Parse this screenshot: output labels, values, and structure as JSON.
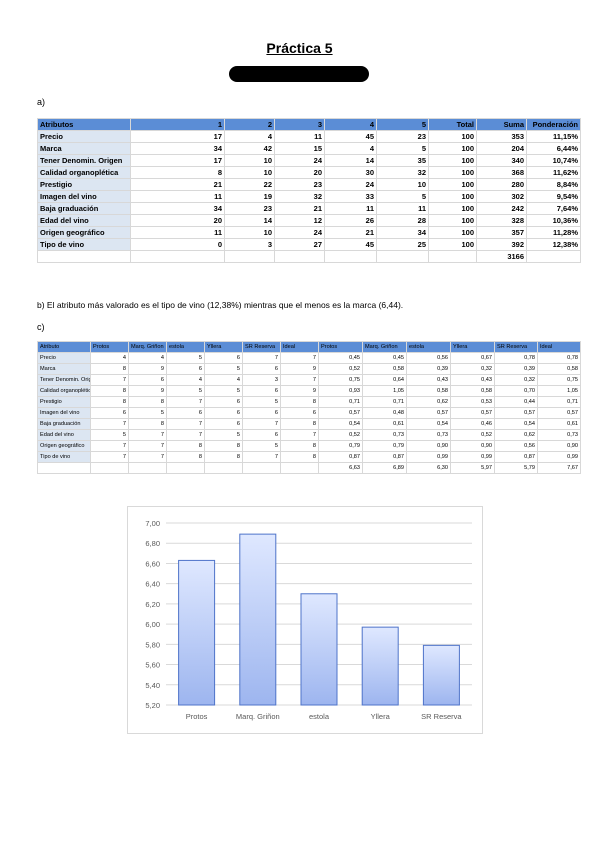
{
  "title": "Práctica 5",
  "section_a": "a)",
  "table_a": {
    "headers": [
      "Atributos",
      "1",
      "2",
      "3",
      "4",
      "5",
      "Total",
      "Suma",
      "Ponderación"
    ],
    "rows": [
      {
        "label": "Precio",
        "values": [
          "17",
          "4",
          "11",
          "45",
          "23",
          "100",
          "353",
          "11,15%"
        ]
      },
      {
        "label": "Marca",
        "values": [
          "34",
          "42",
          "15",
          "4",
          "5",
          "100",
          "204",
          "6,44%"
        ]
      },
      {
        "label": "Tener Denomin. Origen",
        "values": [
          "17",
          "10",
          "24",
          "14",
          "35",
          "100",
          "340",
          "10,74%"
        ]
      },
      {
        "label": "Calidad organoplética",
        "values": [
          "8",
          "10",
          "20",
          "30",
          "32",
          "100",
          "368",
          "11,62%"
        ]
      },
      {
        "label": "Prestigio",
        "values": [
          "21",
          "22",
          "23",
          "24",
          "10",
          "100",
          "280",
          "8,84%"
        ]
      },
      {
        "label": "Imagen del vino",
        "values": [
          "11",
          "19",
          "32",
          "33",
          "5",
          "100",
          "302",
          "9,54%"
        ]
      },
      {
        "label": "Baja graduación",
        "values": [
          "34",
          "23",
          "21",
          "11",
          "11",
          "100",
          "242",
          "7,64%"
        ]
      },
      {
        "label": "Edad del vino",
        "values": [
          "20",
          "14",
          "12",
          "26",
          "28",
          "100",
          "328",
          "10,36%"
        ]
      },
      {
        "label": "Origen geográfico",
        "values": [
          "11",
          "10",
          "24",
          "21",
          "34",
          "100",
          "357",
          "11,28%"
        ]
      },
      {
        "label": "Tipo de vino",
        "values": [
          "0",
          "3",
          "27",
          "45",
          "25",
          "100",
          "392",
          "12,38%"
        ]
      }
    ],
    "total": "3166"
  },
  "sentence_b": "b) El atributo más valorado es el tipo de vino (12,38%) mientras que el menos es la marca (6,44).",
  "section_c": "c)",
  "table_c": {
    "headers": [
      "Atributo",
      "Protos",
      "Marq. Griñon",
      "estola",
      "Yllera",
      "SR Reserva",
      "Ideal",
      "Protos",
      "Marq. Griñon",
      "estola",
      "Yllera",
      "SR Reserva",
      "Ideal"
    ],
    "rows": [
      {
        "label": "Precio",
        "values": [
          "4",
          "4",
          "5",
          "6",
          "7",
          "7",
          "0,45",
          "0,45",
          "0,56",
          "0,67",
          "0,78",
          "0,78"
        ]
      },
      {
        "label": "Marca",
        "values": [
          "8",
          "9",
          "6",
          "5",
          "6",
          "9",
          "0,52",
          "0,58",
          "0,39",
          "0,32",
          "0,39",
          "0,58"
        ]
      },
      {
        "label": "Tener Denomin. Origen",
        "values": [
          "7",
          "6",
          "4",
          "4",
          "3",
          "7",
          "0,75",
          "0,64",
          "0,43",
          "0,43",
          "0,32",
          "0,75"
        ]
      },
      {
        "label": "Calidad organoplética",
        "values": [
          "8",
          "9",
          "5",
          "5",
          "6",
          "9",
          "0,93",
          "1,05",
          "0,58",
          "0,58",
          "0,70",
          "1,05"
        ]
      },
      {
        "label": "Prestigio",
        "values": [
          "8",
          "8",
          "7",
          "6",
          "5",
          "8",
          "0,71",
          "0,71",
          "0,62",
          "0,53",
          "0,44",
          "0,71"
        ]
      },
      {
        "label": "Imagen del vino",
        "values": [
          "6",
          "5",
          "6",
          "6",
          "6",
          "6",
          "0,57",
          "0,48",
          "0,57",
          "0,57",
          "0,57",
          "0,57"
        ]
      },
      {
        "label": "Baja graduación",
        "values": [
          "7",
          "8",
          "7",
          "6",
          "7",
          "8",
          "0,54",
          "0,61",
          "0,54",
          "0,46",
          "0,54",
          "0,61"
        ]
      },
      {
        "label": "Edad del vino",
        "values": [
          "5",
          "7",
          "7",
          "5",
          "6",
          "7",
          "0,52",
          "0,73",
          "0,73",
          "0,52",
          "0,62",
          "0,73"
        ]
      },
      {
        "label": "Origen geográfico",
        "values": [
          "7",
          "7",
          "8",
          "8",
          "5",
          "8",
          "0,79",
          "0,79",
          "0,90",
          "0,90",
          "0,56",
          "0,90"
        ]
      },
      {
        "label": "Tipo de vino",
        "values": [
          "7",
          "7",
          "8",
          "8",
          "7",
          "8",
          "0,87",
          "0,87",
          "0,99",
          "0,99",
          "0,87",
          "0,99"
        ]
      }
    ],
    "totals": [
      "6,63",
      "6,89",
      "6,30",
      "5,97",
      "5,79",
      "7,67"
    ]
  },
  "chart_data": {
    "type": "bar",
    "categories": [
      "Protos",
      "Marq. Griñon",
      "estola",
      "Yllera",
      "SR Reserva"
    ],
    "values": [
      6.63,
      6.89,
      6.3,
      5.97,
      5.79
    ],
    "ylim": [
      5.2,
      7.0
    ],
    "yticks": [
      "5,20",
      "5,40",
      "5,60",
      "5,80",
      "6,00",
      "6,20",
      "6,40",
      "6,60",
      "6,80",
      "7,00"
    ],
    "grid": true,
    "colors": {
      "bar_top": "#dfe8ff",
      "bar_bottom": "#9db5ef",
      "bar_stroke": "#4e73c9",
      "grid": "#d9d9d9"
    }
  }
}
